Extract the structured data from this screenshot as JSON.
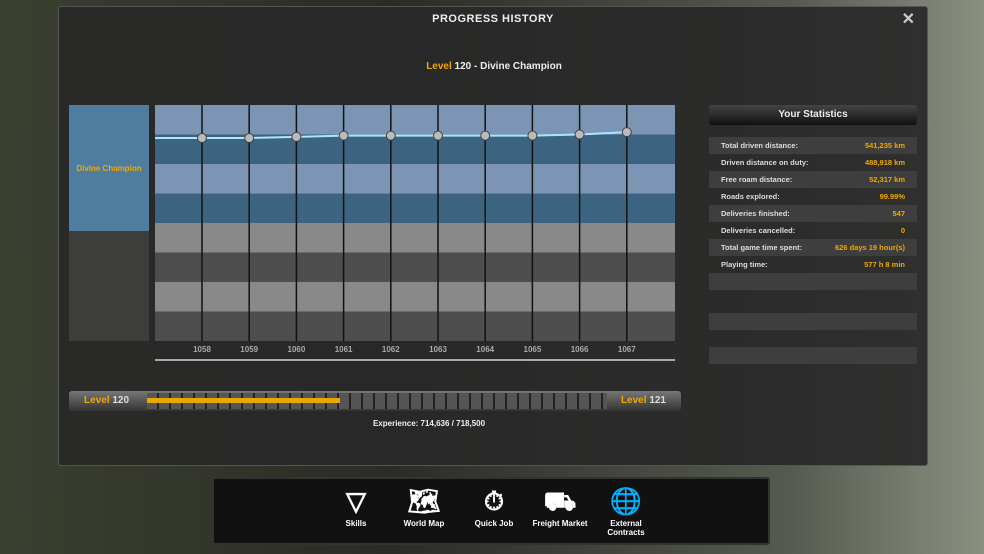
{
  "window": {
    "title": "PROGRESS HISTORY",
    "close_icon": "close-x-icon"
  },
  "level_header": {
    "level_word": "Level",
    "level": "120",
    "rank": " - Divine Champion"
  },
  "rank_label": "Divine Champion",
  "chart_data": {
    "type": "line",
    "categories": [
      "1058",
      "1059",
      "1060",
      "1061",
      "1062",
      "1063",
      "1064",
      "1065",
      "1066",
      "1067"
    ],
    "values": [
      120.72,
      120.72,
      120.73,
      120.74,
      120.74,
      120.74,
      120.74,
      120.74,
      120.75,
      120.77
    ],
    "ylim": [
      119,
      121
    ],
    "grid": true,
    "color": "#aee4ff"
  },
  "stats": {
    "title": "Your Statistics",
    "rows": [
      {
        "label": "Total driven distance:",
        "value": "541,235 km"
      },
      {
        "label": "Driven distance on duty:",
        "value": "488,918 km"
      },
      {
        "label": "Free roam distance:",
        "value": "52,317 km"
      },
      {
        "label": "Roads explored:",
        "value": "99.99%"
      },
      {
        "label": "Deliveries finished:",
        "value": "547"
      },
      {
        "label": "Deliveries cancelled:",
        "value": "0"
      },
      {
        "label": "Total game time spent:",
        "value": "626 days 19 hour(s)"
      },
      {
        "label": "Playing time:",
        "value": "577 h 8 min"
      }
    ]
  },
  "xp": {
    "level_word": "Level",
    "current": "120",
    "next": "121",
    "text": "Experience: 714,636 / 718,500",
    "bar_progress": 0.42
  },
  "dock": [
    {
      "label": "Skills",
      "icon": "skills-icon"
    },
    {
      "label": "World Map",
      "icon": "world-map-icon"
    },
    {
      "label": "Quick Job",
      "icon": "quick-job-icon"
    },
    {
      "label": "Freight Market",
      "icon": "forklift-icon"
    },
    {
      "label": "External Contracts",
      "icon": "globe-icon"
    }
  ]
}
